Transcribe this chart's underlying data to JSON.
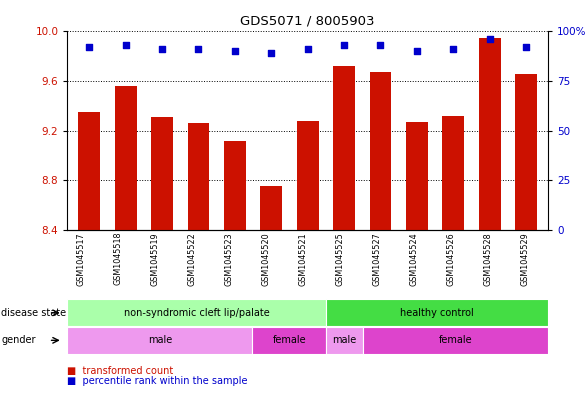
{
  "title": "GDS5071 / 8005903",
  "samples": [
    "GSM1045517",
    "GSM1045518",
    "GSM1045519",
    "GSM1045522",
    "GSM1045523",
    "GSM1045520",
    "GSM1045521",
    "GSM1045525",
    "GSM1045527",
    "GSM1045524",
    "GSM1045526",
    "GSM1045528",
    "GSM1045529"
  ],
  "transformed_count": [
    9.35,
    9.56,
    9.31,
    9.26,
    9.12,
    8.75,
    9.28,
    9.72,
    9.67,
    9.27,
    9.32,
    9.95,
    9.66
  ],
  "percentile_rank": [
    92,
    93,
    91,
    91,
    90,
    89,
    91,
    93,
    93,
    90,
    91,
    96,
    92
  ],
  "ylim_left": [
    8.4,
    10.0
  ],
  "ylim_right": [
    0,
    100
  ],
  "yticks_left": [
    8.4,
    8.8,
    9.2,
    9.6,
    10.0
  ],
  "yticks_right": [
    0,
    25,
    50,
    75,
    100
  ],
  "bar_color": "#cc1100",
  "dot_color": "#0000cc",
  "disease_state_groups": [
    {
      "label": "non-syndromic cleft lip/palate",
      "start": 0,
      "end": 7,
      "color": "#aaffaa"
    },
    {
      "label": "healthy control",
      "start": 7,
      "end": 13,
      "color": "#44dd44"
    }
  ],
  "gender_groups": [
    {
      "label": "male",
      "start": 0,
      "end": 5,
      "color": "#ee99ee"
    },
    {
      "label": "female",
      "start": 5,
      "end": 7,
      "color": "#dd44cc"
    },
    {
      "label": "male",
      "start": 7,
      "end": 8,
      "color": "#ee99ee"
    },
    {
      "label": "female",
      "start": 8,
      "end": 13,
      "color": "#dd44cc"
    }
  ],
  "grid_color": "#000000",
  "bg_color": "#ffffff",
  "tick_label_color_left": "#cc1100",
  "tick_label_color_right": "#0000cc",
  "xtick_bg_color": "#cccccc",
  "legend_items": [
    "transformed count",
    "percentile rank within the sample"
  ],
  "legend_colors": [
    "#cc1100",
    "#0000cc"
  ]
}
